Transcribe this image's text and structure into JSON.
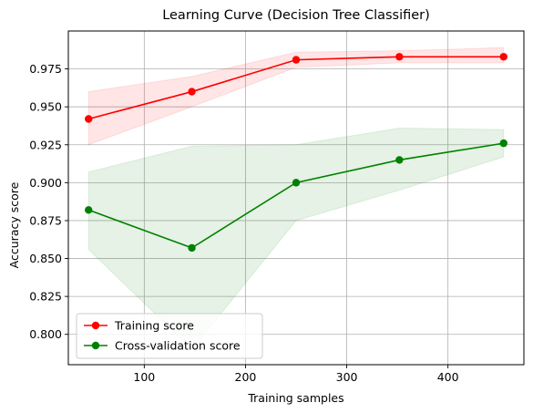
{
  "chart_data": {
    "type": "line",
    "title": "Learning Curve (Decision Tree Classifier)",
    "xlabel": "Training samples",
    "ylabel": "Accuracy score",
    "xlim": [
      25,
      475
    ],
    "ylim": [
      0.78,
      1.0
    ],
    "x_ticks": [
      100,
      200,
      300,
      400
    ],
    "y_ticks": [
      0.8,
      0.825,
      0.85,
      0.875,
      0.9,
      0.925,
      0.95,
      0.975
    ],
    "x_tick_labels": [
      "100",
      "200",
      "300",
      "400"
    ],
    "y_tick_labels": [
      "0.800",
      "0.825",
      "0.850",
      "0.875",
      "0.900",
      "0.925",
      "0.950",
      "0.975"
    ],
    "grid": true,
    "legend_position": "lower-left",
    "x": [
      45,
      147,
      250,
      352,
      455
    ],
    "series": [
      {
        "name": "Training score",
        "color": "#ff0000",
        "band_color": "#ff0000",
        "values": [
          0.942,
          0.96,
          0.981,
          0.983,
          0.983
        ],
        "band_lower": [
          0.925,
          0.95,
          0.976,
          0.979,
          0.979
        ],
        "band_upper": [
          0.96,
          0.97,
          0.986,
          0.987,
          0.989
        ]
      },
      {
        "name": "Cross-validation score",
        "color": "#008000",
        "band_color": "#008000",
        "values": [
          0.882,
          0.857,
          0.9,
          0.915,
          0.926
        ],
        "band_lower": [
          0.856,
          0.79,
          0.875,
          0.895,
          0.917
        ],
        "band_upper": [
          0.907,
          0.924,
          0.925,
          0.936,
          0.935
        ]
      }
    ]
  }
}
